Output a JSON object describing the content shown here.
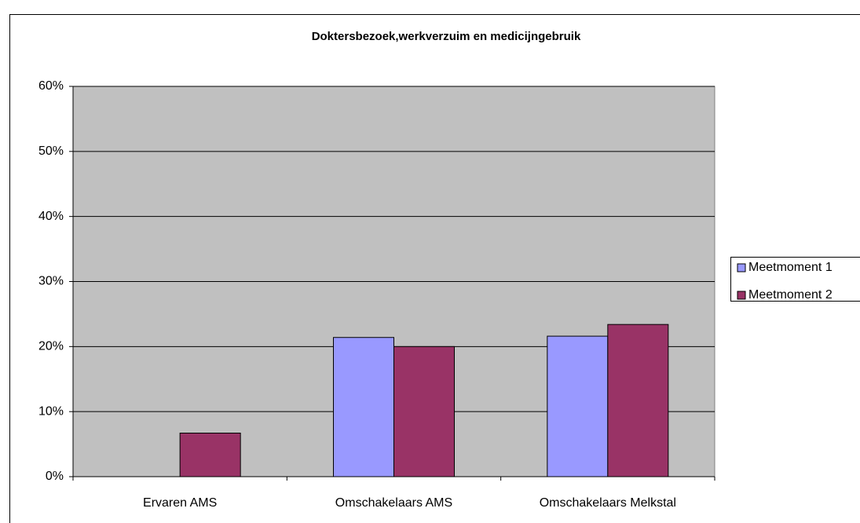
{
  "chart_data": {
    "type": "bar",
    "title": "Doktersbezoek,werkverzuim en medicijngebruik",
    "categories": [
      "Ervaren AMS",
      "Omschakelaars AMS",
      "Omschakelaars Melkstal"
    ],
    "series": [
      {
        "name": "Meetmoment 1",
        "color": "#9999ff",
        "values": [
          null,
          21.4,
          21.6
        ]
      },
      {
        "name": "Meetmoment 2",
        "color": "#993366",
        "values": [
          6.7,
          20.0,
          23.4
        ]
      }
    ],
    "ylim": [
      0,
      60
    ],
    "yticks": [
      {
        "value": 0,
        "label": "0%"
      },
      {
        "value": 10,
        "label": "10%"
      },
      {
        "value": 20,
        "label": "20%"
      },
      {
        "value": 30,
        "label": "30%"
      },
      {
        "value": 40,
        "label": "40%"
      },
      {
        "value": 50,
        "label": "50%"
      },
      {
        "value": 60,
        "label": "60%"
      }
    ],
    "grid": true,
    "legend": "right"
  }
}
